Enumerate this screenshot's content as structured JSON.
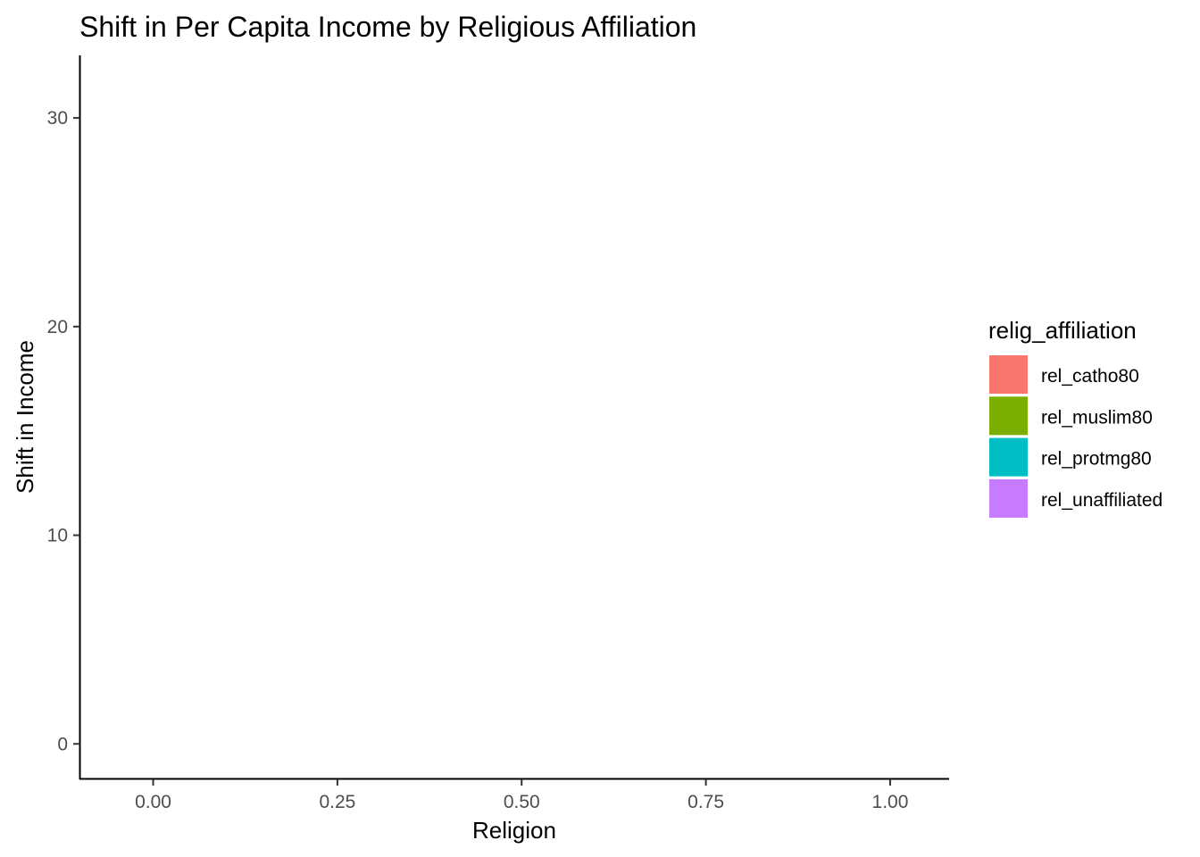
{
  "chart_data": {
    "type": "bar",
    "title": "Shift in Per Capita Income by Religious Affiliation",
    "xlabel": "Religion",
    "ylabel": "Shift in Income",
    "xlim": [
      -0.1,
      1.08
    ],
    "ylim": [
      -1.7,
      33
    ],
    "x_ticks": [
      {
        "value": 0,
        "label": "0.00"
      },
      {
        "value": 0.25,
        "label": "0.25"
      },
      {
        "value": 0.5,
        "label": "0.50"
      },
      {
        "value": 0.75,
        "label": "0.75"
      },
      {
        "value": 1,
        "label": "1.00"
      }
    ],
    "y_ticks": [
      {
        "value": 0,
        "label": "0"
      },
      {
        "value": 10,
        "label": "10"
      },
      {
        "value": 20,
        "label": "20"
      },
      {
        "value": 30,
        "label": "30"
      }
    ],
    "grid": false,
    "legend": {
      "title": "relig_affiliation",
      "position": "right",
      "entries": [
        {
          "label": "rel_catho80",
          "color": "#F8766D"
        },
        {
          "label": "rel_muslim80",
          "color": "#7CAE00"
        },
        {
          "label": "rel_protmg80",
          "color": "#00BFC4"
        },
        {
          "label": "rel_unaffiliated",
          "color": "#C77CFF"
        }
      ]
    },
    "series": []
  }
}
